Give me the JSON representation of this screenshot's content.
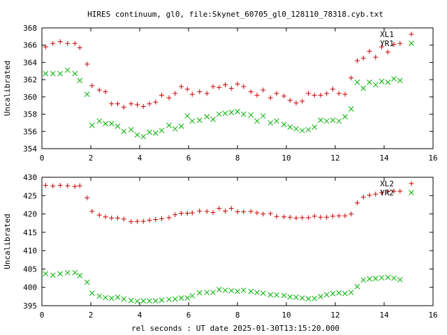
{
  "title": "HIRES continuum, gl0, file:Skynet_60705_gl0_128110_78318.cyb.txt",
  "xlabel": "rel seconds : UT date 2025-01-30T13:15:20.000",
  "colors": {
    "plus_series": "#cc0000",
    "cross_series": "#00b000"
  },
  "chart_data": [
    {
      "type": "scatter",
      "ylabel": "Uncalibrated",
      "xlim": [
        0,
        16
      ],
      "ylim": [
        354,
        368
      ],
      "xticks": [
        "0",
        "2",
        "4",
        "6",
        "8",
        "10",
        "12",
        "14",
        "16"
      ],
      "yticks": [
        "354",
        "356",
        "358",
        "360",
        "362",
        "364",
        "366",
        "368"
      ],
      "legend_position": "top-right",
      "series": [
        {
          "name": "XL1",
          "marker": "plus",
          "x": [
            0.15,
            0.45,
            0.75,
            1.05,
            1.35,
            1.55,
            1.85,
            2.05,
            2.35,
            2.6,
            2.85,
            3.1,
            3.35,
            3.65,
            3.9,
            4.15,
            4.4,
            4.65,
            4.9,
            5.2,
            5.45,
            5.7,
            5.95,
            6.15,
            6.45,
            6.75,
            7.0,
            7.25,
            7.5,
            7.75,
            8.0,
            8.25,
            8.55,
            8.8,
            9.05,
            9.35,
            9.6,
            9.9,
            10.15,
            10.4,
            10.65,
            10.9,
            11.15,
            11.4,
            11.65,
            11.9,
            12.15,
            12.4,
            12.65,
            12.9,
            13.15,
            13.4,
            13.65,
            13.9,
            14.15,
            14.4,
            14.65
          ],
          "y": [
            365.8,
            366.2,
            366.4,
            366.2,
            366.2,
            365.7,
            363.8,
            361.3,
            360.8,
            360.6,
            359.2,
            359.2,
            358.8,
            359.2,
            359.1,
            358.9,
            359.2,
            359.4,
            360.2,
            359.9,
            360.4,
            361.2,
            360.9,
            360.3,
            360.6,
            360.4,
            361.2,
            361.1,
            361.4,
            361.0,
            361.5,
            361.2,
            360.6,
            360.2,
            360.8,
            359.9,
            360.4,
            360.1,
            359.6,
            359.3,
            359.5,
            360.4,
            360.2,
            360.2,
            360.4,
            360.9,
            360.4,
            360.3,
            362.2,
            364.2,
            364.5,
            365.3,
            364.6,
            365.8,
            365.2,
            366.1,
            366.2
          ],
          "y_ignored_note": ""
        },
        {
          "name": "YR1",
          "marker": "cross",
          "x": [
            0.15,
            0.45,
            0.75,
            1.05,
            1.35,
            1.55,
            1.85,
            2.05,
            2.35,
            2.6,
            2.85,
            3.1,
            3.35,
            3.65,
            3.9,
            4.15,
            4.4,
            4.65,
            4.9,
            5.2,
            5.45,
            5.7,
            5.95,
            6.15,
            6.45,
            6.75,
            7.0,
            7.25,
            7.5,
            7.75,
            8.0,
            8.25,
            8.55,
            8.8,
            9.05,
            9.35,
            9.6,
            9.9,
            10.15,
            10.4,
            10.65,
            10.9,
            11.15,
            11.4,
            11.65,
            11.9,
            12.15,
            12.4,
            12.65,
            12.9,
            13.15,
            13.4,
            13.65,
            13.9,
            14.15,
            14.4,
            14.65
          ],
          "y": [
            362.7,
            362.7,
            362.7,
            363.1,
            362.7,
            361.9,
            360.3,
            356.7,
            357.2,
            356.9,
            356.9,
            356.6,
            356.0,
            356.2,
            355.6,
            355.4,
            355.9,
            355.8,
            356.1,
            356.7,
            356.3,
            356.6,
            357.8,
            357.2,
            357.3,
            357.7,
            357.4,
            358.0,
            358.1,
            358.2,
            358.3,
            358.0,
            357.9,
            357.2,
            357.8,
            357.0,
            357.2,
            356.8,
            356.5,
            356.3,
            356.1,
            356.2,
            356.5,
            357.3,
            357.2,
            357.3,
            357.2,
            357.7,
            358.6,
            361.7,
            361.0,
            361.7,
            361.4,
            361.8,
            361.7,
            362.1,
            361.9
          ],
          "y_ignored_note": ""
        }
      ]
    },
    {
      "type": "scatter",
      "ylabel": "Uncalibrated",
      "xlim": [
        0,
        16
      ],
      "ylim": [
        395,
        430
      ],
      "xticks": [
        "0",
        "2",
        "4",
        "6",
        "8",
        "10",
        "12",
        "14",
        "16"
      ],
      "yticks": [
        "395",
        "400",
        "405",
        "410",
        "415",
        "420",
        "425",
        "430"
      ],
      "legend_position": "top-right",
      "series": [
        {
          "name": "XL2",
          "marker": "plus",
          "x": [
            0.15,
            0.45,
            0.75,
            1.05,
            1.35,
            1.55,
            1.85,
            2.05,
            2.35,
            2.6,
            2.85,
            3.1,
            3.35,
            3.65,
            3.9,
            4.15,
            4.4,
            4.65,
            4.9,
            5.2,
            5.45,
            5.7,
            5.95,
            6.15,
            6.45,
            6.75,
            7.0,
            7.25,
            7.5,
            7.75,
            8.0,
            8.25,
            8.55,
            8.8,
            9.05,
            9.35,
            9.6,
            9.9,
            10.15,
            10.4,
            10.65,
            10.9,
            11.15,
            11.4,
            11.65,
            11.9,
            12.15,
            12.4,
            12.65,
            12.9,
            13.15,
            13.4,
            13.65,
            13.9,
            14.15,
            14.4,
            14.65
          ],
          "y": [
            427.8,
            427.6,
            427.8,
            427.7,
            427.5,
            427.7,
            424.4,
            420.7,
            419.7,
            419.2,
            418.9,
            418.9,
            418.6,
            417.9,
            418.0,
            418.0,
            418.3,
            418.5,
            418.7,
            419.0,
            419.8,
            420.2,
            420.2,
            420.3,
            420.8,
            420.7,
            420.4,
            421.5,
            420.8,
            421.5,
            420.6,
            420.6,
            420.7,
            420.3,
            420.0,
            420.1,
            419.3,
            419.2,
            419.1,
            418.9,
            419.0,
            419.0,
            419.4,
            419.1,
            419.1,
            419.4,
            419.5,
            419.5,
            420.0,
            423.0,
            424.6,
            425.1,
            425.4,
            425.8,
            426.1,
            426.2,
            426.2
          ],
          "y_ignored_note": ""
        },
        {
          "name": "YR2",
          "marker": "cross",
          "x": [
            0.15,
            0.45,
            0.75,
            1.05,
            1.35,
            1.55,
            1.85,
            2.05,
            2.35,
            2.6,
            2.85,
            3.1,
            3.35,
            3.65,
            3.9,
            4.15,
            4.4,
            4.65,
            4.9,
            5.2,
            5.45,
            5.7,
            5.95,
            6.15,
            6.45,
            6.75,
            7.0,
            7.25,
            7.5,
            7.75,
            8.0,
            8.25,
            8.55,
            8.8,
            9.05,
            9.35,
            9.6,
            9.9,
            10.15,
            10.4,
            10.65,
            10.9,
            11.15,
            11.4,
            11.65,
            11.9,
            12.15,
            12.4,
            12.65,
            12.9,
            13.15,
            13.4,
            13.65,
            13.9,
            14.15,
            14.4,
            14.65
          ],
          "y": [
            403.7,
            403.3,
            403.7,
            404.0,
            404.0,
            403.2,
            401.4,
            398.4,
            397.6,
            397.2,
            397.0,
            397.3,
            396.8,
            396.4,
            396.2,
            396.3,
            396.3,
            396.3,
            396.5,
            396.7,
            396.8,
            397.1,
            397.1,
            397.7,
            398.5,
            398.6,
            398.6,
            399.4,
            399.2,
            399.1,
            398.9,
            399.2,
            398.9,
            398.6,
            398.4,
            398.0,
            397.9,
            397.8,
            397.4,
            397.3,
            397.1,
            396.9,
            397.0,
            397.5,
            398.0,
            398.3,
            398.5,
            398.3,
            398.6,
            400.2,
            402.0,
            402.3,
            402.4,
            402.6,
            402.7,
            402.5,
            402.1
          ],
          "y_ignored_note": ""
        }
      ]
    }
  ]
}
